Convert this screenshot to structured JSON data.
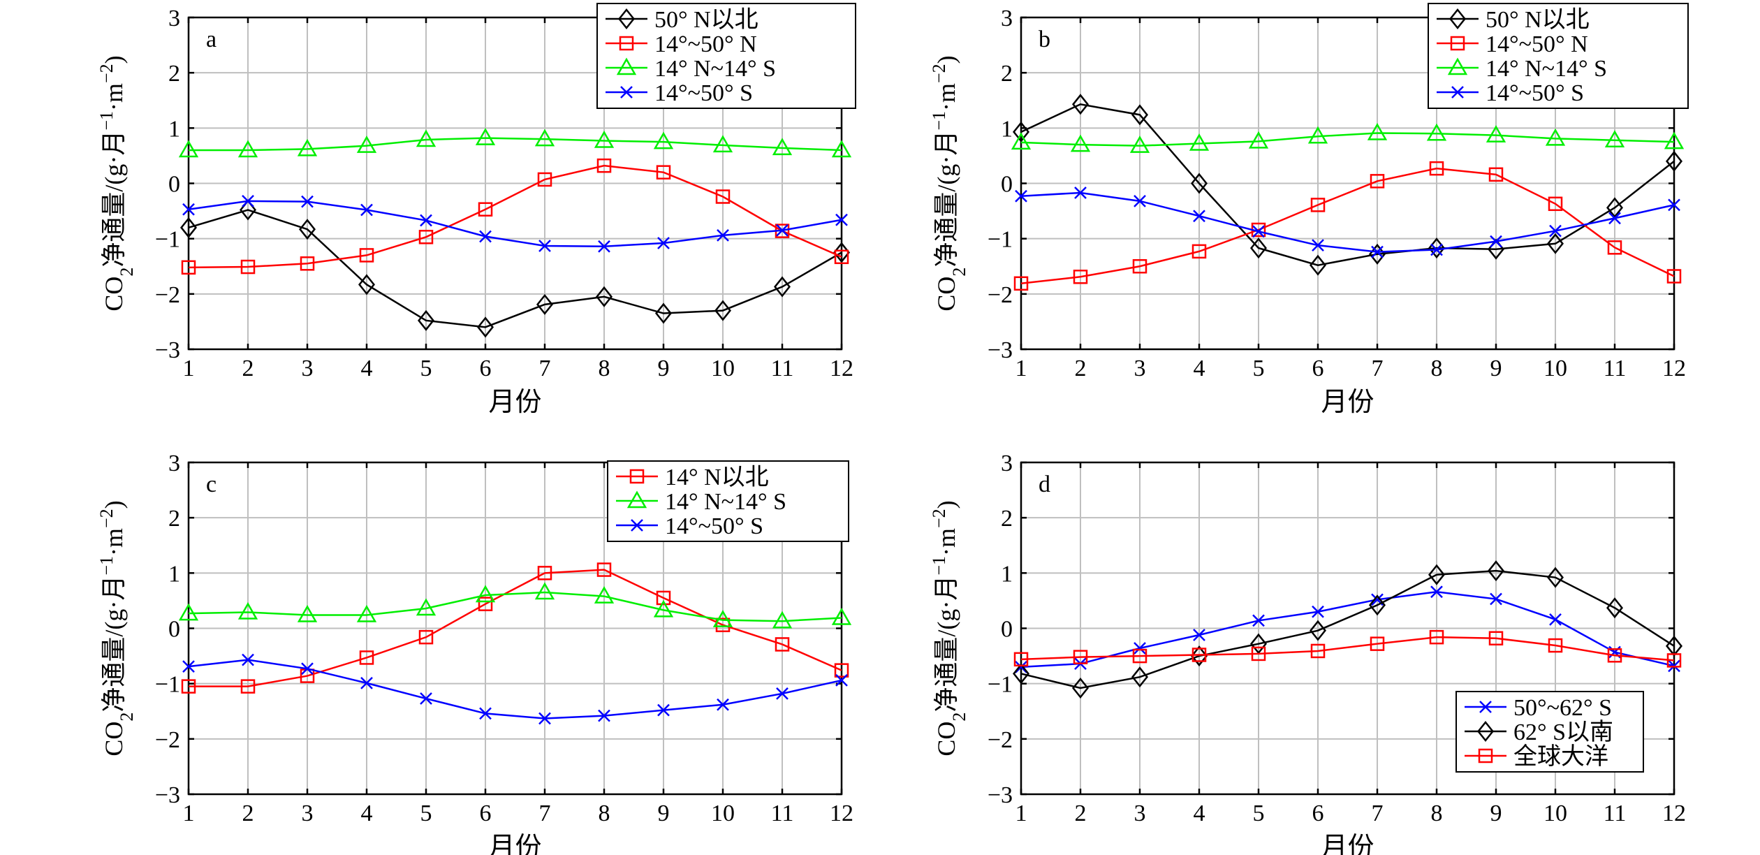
{
  "chart_data": [
    {
      "type": "line",
      "panel": "a",
      "xlabel": "月份",
      "ylabel": "CO2净通量/(g·月-1·m-2)",
      "x": [
        1,
        2,
        3,
        4,
        5,
        6,
        7,
        8,
        9,
        10,
        11,
        12
      ],
      "xlim": [
        1,
        12
      ],
      "ylim": [
        -3,
        3
      ],
      "yticks": [
        -3,
        -2,
        -1,
        0,
        1,
        2,
        3
      ],
      "grid": true,
      "legend_position": "top-right",
      "series": [
        {
          "name": "50° N以北",
          "color": "#000000",
          "marker": "diamond",
          "values": [
            -0.8,
            -0.48,
            -0.83,
            -1.83,
            -2.48,
            -2.6,
            -2.19,
            -2.05,
            -2.35,
            -2.3,
            -1.87,
            -1.25
          ]
        },
        {
          "name": "14°~50° N",
          "color": "#ff0000",
          "marker": "square",
          "values": [
            -1.52,
            -1.51,
            -1.45,
            -1.3,
            -0.97,
            -0.47,
            0.07,
            0.32,
            0.2,
            -0.24,
            -0.86,
            -1.33
          ]
        },
        {
          "name": "14° N~14° S",
          "color": "#00ee00",
          "marker": "triangle",
          "values": [
            0.6,
            0.6,
            0.62,
            0.68,
            0.79,
            0.82,
            0.8,
            0.77,
            0.75,
            0.69,
            0.64,
            0.6
          ]
        },
        {
          "name": "14°~50° S",
          "color": "#0000ff",
          "marker": "x",
          "values": [
            -0.47,
            -0.32,
            -0.33,
            -0.48,
            -0.67,
            -0.96,
            -1.13,
            -1.14,
            -1.08,
            -0.94,
            -0.85,
            -0.66
          ]
        }
      ]
    },
    {
      "type": "line",
      "panel": "b",
      "xlabel": "月份",
      "ylabel": "CO2净通量/(g·月-1·m-2)",
      "x": [
        1,
        2,
        3,
        4,
        5,
        6,
        7,
        8,
        9,
        10,
        11,
        12
      ],
      "xlim": [
        1,
        12
      ],
      "ylim": [
        -3,
        3
      ],
      "yticks": [
        -3,
        -2,
        -1,
        0,
        1,
        2,
        3
      ],
      "grid": true,
      "legend_position": "top-right",
      "series": [
        {
          "name": "50° N以北",
          "color": "#000000",
          "marker": "diamond",
          "values": [
            0.93,
            1.43,
            1.24,
            0.0,
            -1.17,
            -1.48,
            -1.28,
            -1.17,
            -1.19,
            -1.09,
            -0.44,
            0.4
          ]
        },
        {
          "name": "14°~50° N",
          "color": "#ff0000",
          "marker": "square",
          "values": [
            -1.81,
            -1.69,
            -1.5,
            -1.23,
            -0.84,
            -0.39,
            0.04,
            0.27,
            0.16,
            -0.37,
            -1.16,
            -1.68
          ]
        },
        {
          "name": "14° N~14° S",
          "color": "#00ee00",
          "marker": "triangle",
          "values": [
            0.74,
            0.7,
            0.68,
            0.72,
            0.76,
            0.85,
            0.91,
            0.9,
            0.87,
            0.81,
            0.78,
            0.75
          ]
        },
        {
          "name": "14°~50° S",
          "color": "#0000ff",
          "marker": "x",
          "values": [
            -0.23,
            -0.17,
            -0.32,
            -0.59,
            -0.87,
            -1.12,
            -1.24,
            -1.2,
            -1.05,
            -0.86,
            -0.63,
            -0.39
          ]
        }
      ]
    },
    {
      "type": "line",
      "panel": "c",
      "xlabel": "月份",
      "ylabel": "CO2净通量/(g·月-1·m-2)",
      "x": [
        1,
        2,
        3,
        4,
        5,
        6,
        7,
        8,
        9,
        10,
        11,
        12
      ],
      "xlim": [
        1,
        12
      ],
      "ylim": [
        -3,
        3
      ],
      "yticks": [
        -3,
        -2,
        -1,
        0,
        1,
        2,
        3
      ],
      "grid": true,
      "legend_position": "top-right",
      "series": [
        {
          "name": "14° N以北",
          "color": "#ff0000",
          "marker": "square",
          "values": [
            -1.05,
            -1.05,
            -0.86,
            -0.53,
            -0.16,
            0.44,
            1.0,
            1.06,
            0.55,
            0.06,
            -0.29,
            -0.76
          ]
        },
        {
          "name": "14° N~14° S",
          "color": "#00ee00",
          "marker": "triangle",
          "values": [
            0.27,
            0.29,
            0.24,
            0.24,
            0.36,
            0.6,
            0.65,
            0.58,
            0.33,
            0.15,
            0.13,
            0.19
          ]
        },
        {
          "name": "14°~50° S",
          "color": "#0000ff",
          "marker": "x",
          "values": [
            -0.69,
            -0.57,
            -0.73,
            -0.99,
            -1.27,
            -1.54,
            -1.63,
            -1.58,
            -1.48,
            -1.38,
            -1.18,
            -0.94
          ]
        }
      ]
    },
    {
      "type": "line",
      "panel": "d",
      "xlabel": "月份",
      "ylabel": "CO2净通量/(g·月-1·m-2)",
      "x": [
        1,
        2,
        3,
        4,
        5,
        6,
        7,
        8,
        9,
        10,
        11,
        12
      ],
      "xlim": [
        1,
        12
      ],
      "ylim": [
        -3,
        3
      ],
      "yticks": [
        -3,
        -2,
        -1,
        0,
        1,
        2,
        3
      ],
      "grid": true,
      "legend_position": "bottom-right",
      "series": [
        {
          "name": "50°~62° S",
          "color": "#0000ff",
          "marker": "x",
          "values": [
            -0.7,
            -0.64,
            -0.36,
            -0.12,
            0.14,
            0.3,
            0.52,
            0.66,
            0.53,
            0.16,
            -0.43,
            -0.68
          ]
        },
        {
          "name": "62° S以南",
          "color": "#000000",
          "marker": "diamond",
          "values": [
            -0.82,
            -1.08,
            -0.88,
            -0.5,
            -0.28,
            -0.04,
            0.42,
            0.97,
            1.04,
            0.92,
            0.37,
            -0.32
          ]
        },
        {
          "name": "全球大洋",
          "color": "#ff0000",
          "marker": "square",
          "values": [
            -0.56,
            -0.52,
            -0.5,
            -0.48,
            -0.46,
            -0.41,
            -0.28,
            -0.16,
            -0.18,
            -0.31,
            -0.49,
            -0.58
          ]
        }
      ]
    }
  ]
}
